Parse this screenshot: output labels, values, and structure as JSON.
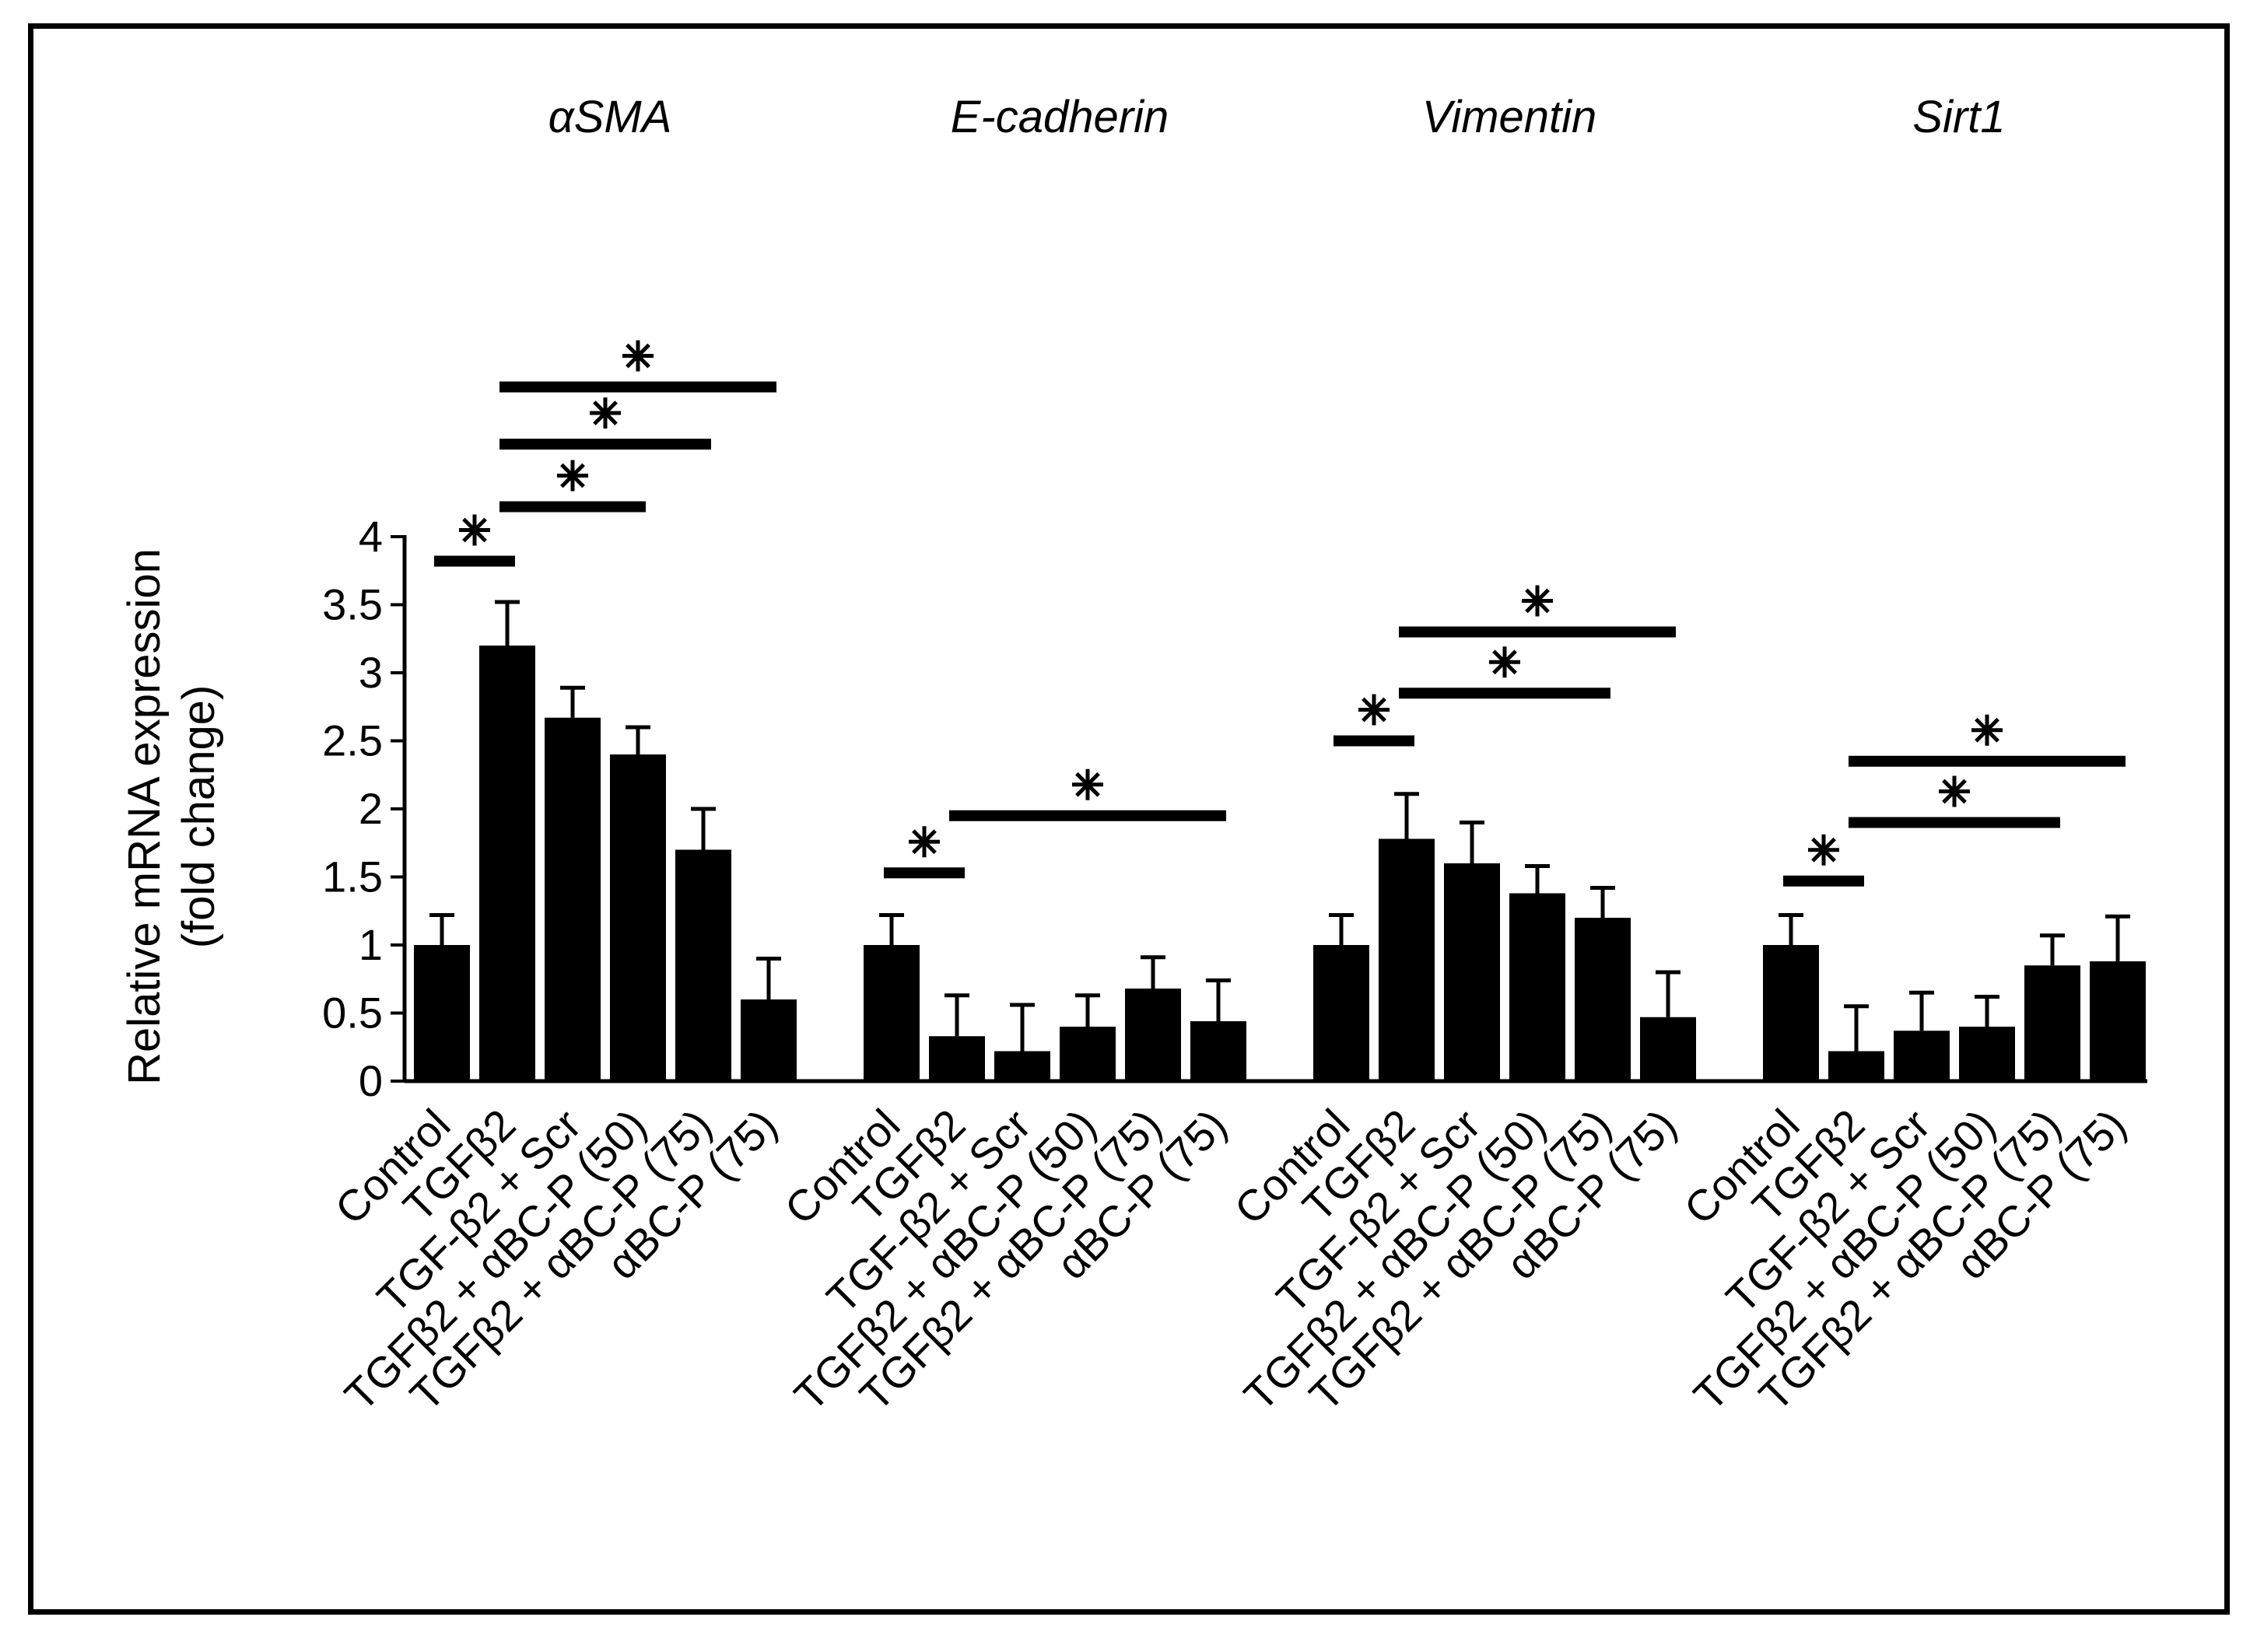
{
  "chart_data": {
    "type": "bar",
    "ylabel_line1": "Relative mRNA expression",
    "ylabel_line2": "(fold change)",
    "ylim": [
      0,
      4
    ],
    "yticks": [
      0,
      0.5,
      1,
      1.5,
      2,
      2.5,
      3,
      3.5,
      4
    ],
    "ytick_labels": [
      "0",
      "0.5",
      "1",
      "1.5",
      "2",
      "2.5",
      "3",
      "3.5",
      "4"
    ],
    "categories": [
      "Control",
      "TGFβ2",
      "TGF-β2 + Scr",
      "TGFβ2 + αBC-P (50)",
      "TGFβ2 + αBC-P (75)",
      "αBC-P (75)"
    ],
    "bar_color": "#000000",
    "groups": [
      {
        "gene": "αSMA",
        "values": [
          1.0,
          3.2,
          2.67,
          2.4,
          1.7,
          0.6
        ],
        "errors": [
          0.22,
          0.32,
          0.22,
          0.2,
          0.3,
          0.3
        ],
        "significance": [
          {
            "from": 0,
            "to": 1,
            "y": 3.82,
            "label": "*"
          },
          {
            "from": 1,
            "to": 3,
            "y": 4.22,
            "label": "*"
          },
          {
            "from": 1,
            "to": 4,
            "y": 4.68,
            "label": "*"
          },
          {
            "from": 1,
            "to": 5,
            "y": 5.1,
            "label": "*"
          }
        ]
      },
      {
        "gene": "E-cadherin",
        "values": [
          1.0,
          0.33,
          0.22,
          0.4,
          0.68,
          0.44
        ],
        "errors": [
          0.22,
          0.3,
          0.34,
          0.23,
          0.23,
          0.3
        ],
        "significance": [
          {
            "from": 0,
            "to": 1,
            "y": 1.53,
            "label": "*"
          },
          {
            "from": 1,
            "to": 5,
            "y": 1.95,
            "label": "*"
          }
        ]
      },
      {
        "gene": "Vimentin",
        "values": [
          1.0,
          1.78,
          1.6,
          1.38,
          1.2,
          0.47
        ],
        "errors": [
          0.22,
          0.33,
          0.3,
          0.2,
          0.22,
          0.33
        ],
        "significance": [
          {
            "from": 0,
            "to": 1,
            "y": 2.5,
            "label": "*"
          },
          {
            "from": 1,
            "to": 4,
            "y": 2.85,
            "label": "*"
          },
          {
            "from": 1,
            "to": 5,
            "y": 3.3,
            "label": "*"
          }
        ]
      },
      {
        "gene": "Sirt1",
        "values": [
          1.0,
          0.22,
          0.37,
          0.4,
          0.85,
          0.88
        ],
        "errors": [
          0.22,
          0.33,
          0.28,
          0.22,
          0.22,
          0.33
        ],
        "significance": [
          {
            "from": 0,
            "to": 1,
            "y": 1.47,
            "label": "*"
          },
          {
            "from": 1,
            "to": 4,
            "y": 1.9,
            "label": "*"
          },
          {
            "from": 1,
            "to": 5,
            "y": 2.35,
            "label": "*"
          }
        ]
      }
    ]
  }
}
